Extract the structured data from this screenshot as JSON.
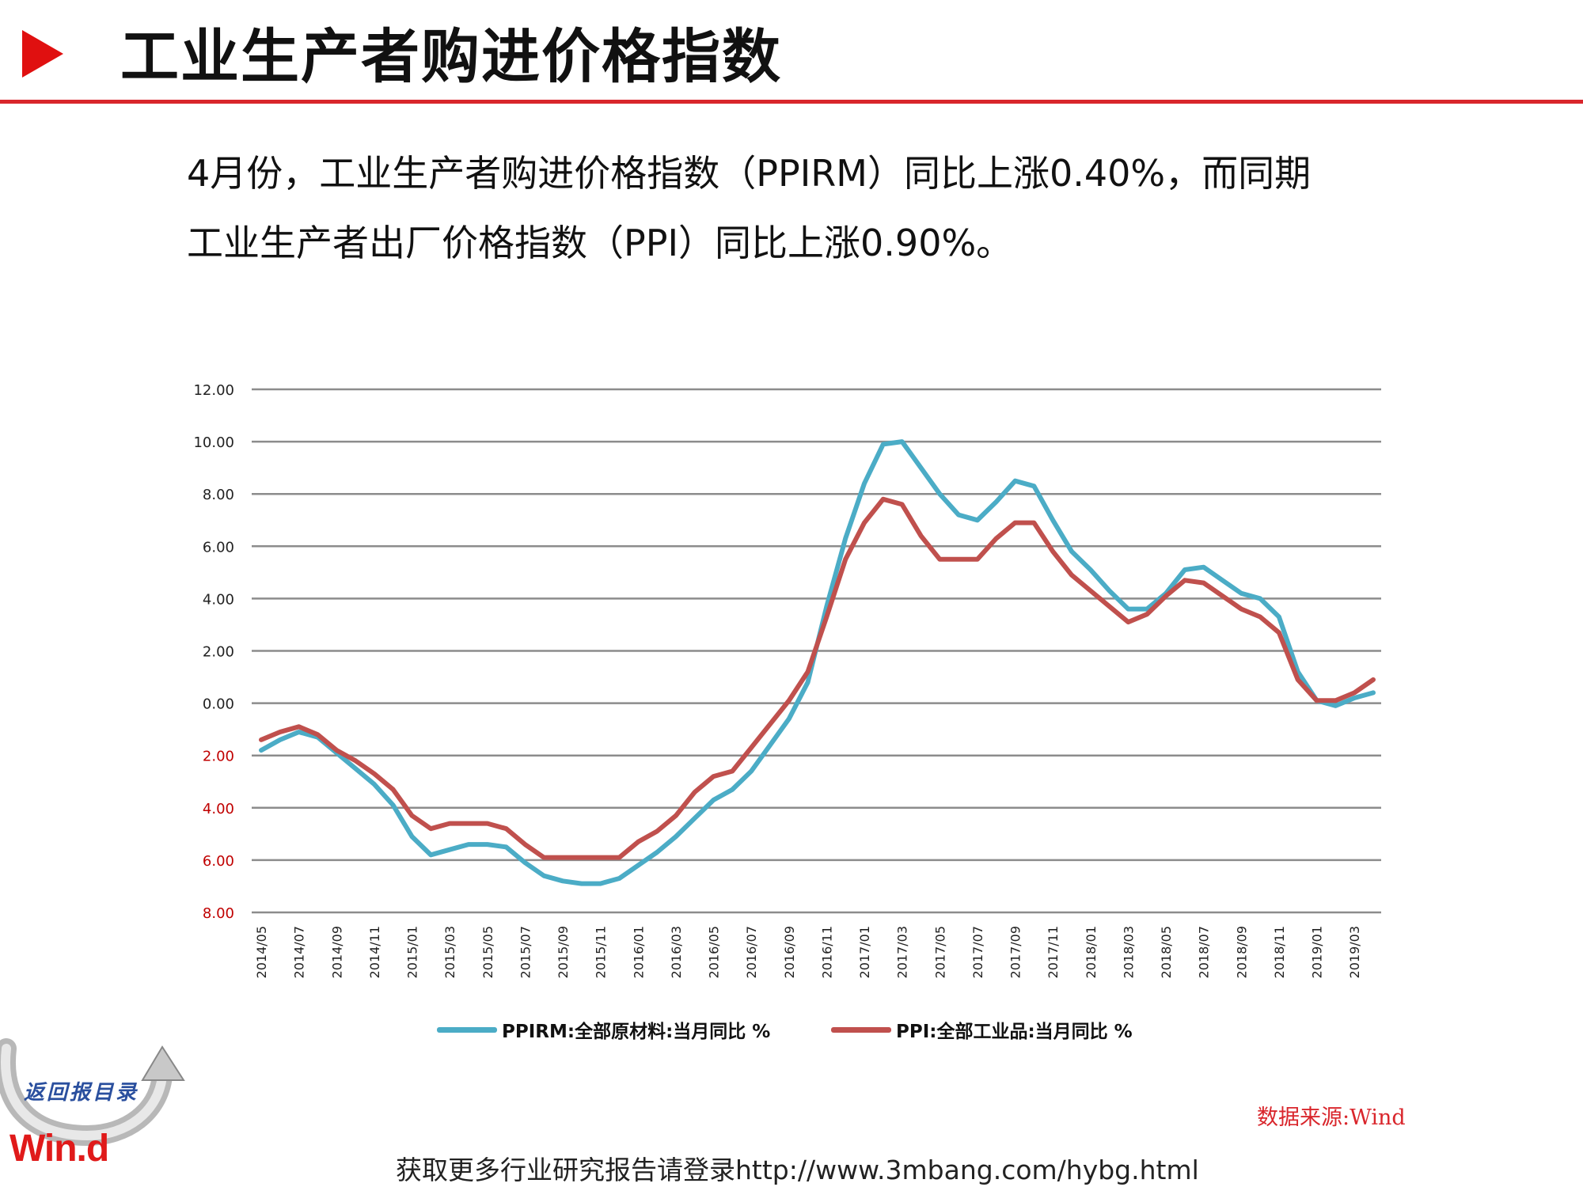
{
  "header": {
    "title": "工业生产者购进价格指数"
  },
  "summary": {
    "line1": "4月份，工业生产者购进价格指数（PPIRM）同比上涨0.40%，而同期",
    "line2": "工业生产者出厂价格指数（PPI）同比上涨0.90%。"
  },
  "source": "数据来源:Wind",
  "footer": "获取更多行业研究报告请登录http://www.3mbang.com/hybg.html",
  "logo": {
    "text": "Win.d",
    "script": "返回报目录"
  },
  "colors": {
    "ppirm": "#4bacc6",
    "ppi": "#c0504d",
    "accent": "#d9262c",
    "negative_tick": "#c00000"
  },
  "chart_data": {
    "type": "line",
    "title": "",
    "xlabel": "",
    "ylabel": "",
    "ylim": [
      -8,
      12
    ],
    "yticks": [
      {
        "value": 12,
        "label": "12.00",
        "negative": false
      },
      {
        "value": 10,
        "label": "10.00",
        "negative": false
      },
      {
        "value": 8,
        "label": "8.00",
        "negative": false
      },
      {
        "value": 6,
        "label": "6.00",
        "negative": false
      },
      {
        "value": 4,
        "label": "4.00",
        "negative": false
      },
      {
        "value": 2,
        "label": "2.00",
        "negative": false
      },
      {
        "value": 0,
        "label": "0.00",
        "negative": false
      },
      {
        "value": -2,
        "label": "2.00",
        "negative": true
      },
      {
        "value": -4,
        "label": "4.00",
        "negative": true
      },
      {
        "value": -6,
        "label": "6.00",
        "negative": true
      },
      {
        "value": -8,
        "label": "8.00",
        "negative": true
      }
    ],
    "grid": true,
    "legend": "bottom",
    "x": [
      "2014/05",
      "2014/06",
      "2014/07",
      "2014/08",
      "2014/09",
      "2014/10",
      "2014/11",
      "2014/12",
      "2015/01",
      "2015/02",
      "2015/03",
      "2015/04",
      "2015/05",
      "2015/06",
      "2015/07",
      "2015/08",
      "2015/09",
      "2015/10",
      "2015/11",
      "2015/12",
      "2016/01",
      "2016/02",
      "2016/03",
      "2016/04",
      "2016/05",
      "2016/06",
      "2016/07",
      "2016/08",
      "2016/09",
      "2016/10",
      "2016/11",
      "2016/12",
      "2017/01",
      "2017/02",
      "2017/03",
      "2017/04",
      "2017/05",
      "2017/06",
      "2017/07",
      "2017/08",
      "2017/09",
      "2017/10",
      "2017/11",
      "2017/12",
      "2018/01",
      "2018/02",
      "2018/03",
      "2018/04",
      "2018/05",
      "2018/06",
      "2018/07",
      "2018/08",
      "2018/09",
      "2018/10",
      "2018/11",
      "2018/12",
      "2019/01",
      "2019/02",
      "2019/03",
      "2019/04"
    ],
    "xtick_labels": [
      "2014/05",
      "2014/07",
      "2014/09",
      "2014/11",
      "2015/01",
      "2015/03",
      "2015/05",
      "2015/07",
      "2015/09",
      "2015/11",
      "2016/01",
      "2016/03",
      "2016/05",
      "2016/07",
      "2016/09",
      "2016/11",
      "2017/01",
      "2017/03",
      "2017/05",
      "2017/07",
      "2017/09",
      "2017/11",
      "2018/01",
      "2018/03",
      "2018/05",
      "2018/07",
      "2018/09",
      "2018/11",
      "2019/01",
      "2019/03"
    ],
    "series": [
      {
        "name": "PPIRM:全部原材料:当月同比 %",
        "color": "#4bacc6",
        "values": [
          -1.8,
          -1.4,
          -1.1,
          -1.3,
          -1.9,
          -2.5,
          -3.1,
          -3.9,
          -5.1,
          -5.8,
          -5.6,
          -5.4,
          -5.4,
          -5.5,
          -6.1,
          -6.6,
          -6.8,
          -6.9,
          -6.9,
          -6.7,
          -6.2,
          -5.7,
          -5.1,
          -4.4,
          -3.7,
          -3.3,
          -2.6,
          -1.6,
          -0.6,
          0.8,
          3.7,
          6.3,
          8.4,
          9.9,
          10.0,
          9.0,
          8.0,
          7.2,
          7.0,
          7.7,
          8.5,
          8.3,
          7.0,
          5.8,
          5.1,
          4.3,
          3.6,
          3.6,
          4.2,
          5.1,
          5.2,
          4.7,
          4.2,
          4.0,
          3.3,
          1.2,
          0.1,
          -0.1,
          0.2,
          0.4
        ]
      },
      {
        "name": "PPI:全部工业品:当月同比 %",
        "color": "#c0504d",
        "values": [
          -1.4,
          -1.1,
          -0.9,
          -1.2,
          -1.8,
          -2.2,
          -2.7,
          -3.3,
          -4.3,
          -4.8,
          -4.6,
          -4.6,
          -4.6,
          -4.8,
          -5.4,
          -5.9,
          -5.9,
          -5.9,
          -5.9,
          -5.9,
          -5.3,
          -4.9,
          -4.3,
          -3.4,
          -2.8,
          -2.6,
          -1.7,
          -0.8,
          0.1,
          1.2,
          3.3,
          5.5,
          6.9,
          7.8,
          7.6,
          6.4,
          5.5,
          5.5,
          5.5,
          6.3,
          6.9,
          6.9,
          5.8,
          4.9,
          4.3,
          3.7,
          3.1,
          3.4,
          4.1,
          4.7,
          4.6,
          4.1,
          3.6,
          3.3,
          2.7,
          0.9,
          0.1,
          0.1,
          0.4,
          0.9
        ]
      }
    ]
  }
}
